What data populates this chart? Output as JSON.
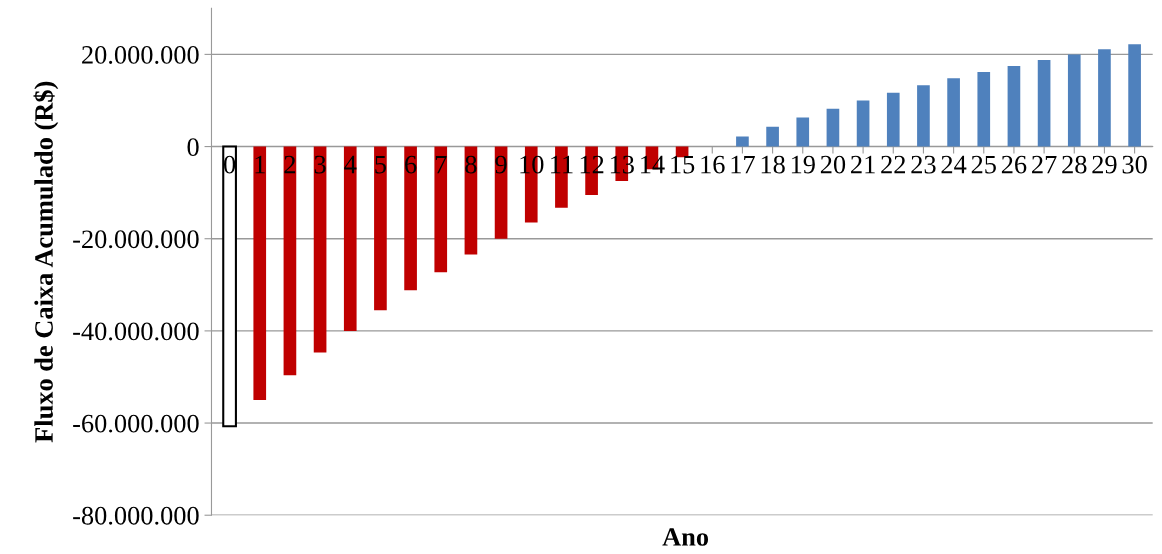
{
  "chart_data": {
    "type": "bar",
    "xlabel": "Ano",
    "ylabel": "Fluxo de Caixa Acumulado (R$)",
    "categories": [
      "0",
      "1",
      "2",
      "3",
      "4",
      "5",
      "6",
      "7",
      "8",
      "9",
      "10",
      "11",
      "12",
      "13",
      "14",
      "15",
      "16",
      "17",
      "18",
      "19",
      "20",
      "21",
      "22",
      "23",
      "24",
      "25",
      "26",
      "27",
      "28",
      "29",
      "30"
    ],
    "values": [
      -60700000,
      -55000000,
      -49600000,
      -44700000,
      -40000000,
      -35500000,
      -31200000,
      -27300000,
      -23400000,
      -20000000,
      -16500000,
      -13300000,
      -10500000,
      -7500000,
      -4900000,
      -2300000,
      0,
      2200000,
      4300000,
      6300000,
      8200000,
      10000000,
      11700000,
      13300000,
      14800000,
      16200000,
      17500000,
      18800000,
      20000000,
      21100000,
      22200000
    ],
    "colors": [
      "#ffffff",
      "#c00000",
      "#c00000",
      "#c00000",
      "#c00000",
      "#c00000",
      "#c00000",
      "#c00000",
      "#c00000",
      "#c00000",
      "#c00000",
      "#c00000",
      "#c00000",
      "#c00000",
      "#c00000",
      "#c00000",
      "#c00000",
      "#4f81bd",
      "#4f81bd",
      "#4f81bd",
      "#4f81bd",
      "#4f81bd",
      "#4f81bd",
      "#4f81bd",
      "#4f81bd",
      "#4f81bd",
      "#4f81bd",
      "#4f81bd",
      "#4f81bd",
      "#4f81bd",
      "#4f81bd"
    ],
    "ylim": [
      -80000000,
      30000000
    ],
    "yticks": [
      {
        "value": -80000000,
        "label": "-80.000.000"
      },
      {
        "value": -60000000,
        "label": "-60.000.000"
      },
      {
        "value": -40000000,
        "label": "-40.000.000"
      },
      {
        "value": -20000000,
        "label": "-20.000.000"
      },
      {
        "value": 0,
        "label": "0"
      },
      {
        "value": 20000000,
        "label": "20.000.000"
      }
    ],
    "grid": "y",
    "legend": false
  }
}
